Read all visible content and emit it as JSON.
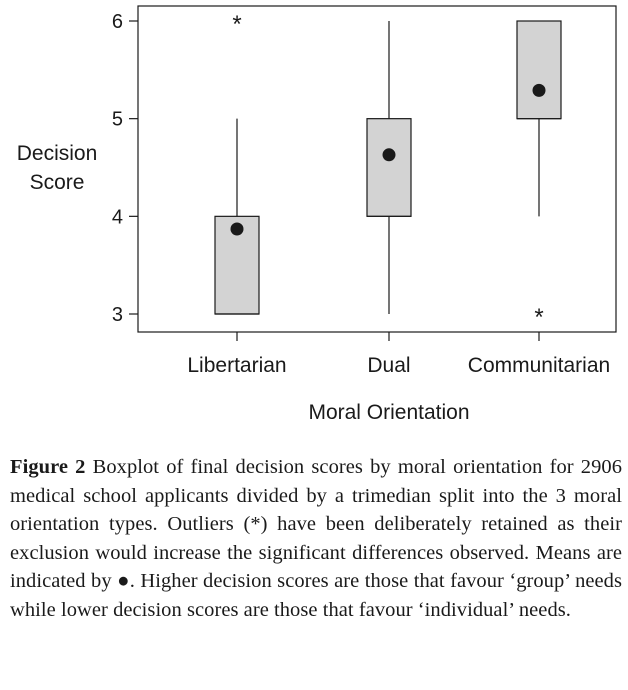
{
  "chart_data": {
    "type": "box",
    "ylabel_lines": [
      "Decision",
      "Score"
    ],
    "xlabel": "Moral Orientation",
    "ylim": [
      2.93,
      6.13
    ],
    "y_ticks": [
      3,
      4,
      5,
      6
    ],
    "grid": false,
    "legend": "none",
    "categories": [
      "Libertarian",
      "Dual",
      "Communitarian"
    ],
    "boxes": [
      {
        "category": "Libertarian",
        "whisker_low": 3,
        "q1": 3,
        "median": 3,
        "q3": 4,
        "whisker_high": 5,
        "mean": 3.87,
        "outliers": [
          6
        ]
      },
      {
        "category": "Dual",
        "whisker_low": 3,
        "q1": 4,
        "median": 4,
        "q3": 5,
        "whisker_high": 6,
        "mean": 4.63,
        "outliers": []
      },
      {
        "category": "Communitarian",
        "whisker_low": 4,
        "q1": 5,
        "median": 5,
        "q3": 6,
        "whisker_high": 6,
        "mean": 5.29,
        "outliers": [
          3
        ]
      }
    ],
    "box_fill": "#d3d3d3",
    "stroke_color": "#1a1a1a",
    "outlier_symbol": "*",
    "mean_symbol": "●"
  },
  "caption": {
    "figure_label": "Figure 2",
    "text_before_symbol": " Boxplot of final decision scores by moral orientation for 2906 medical school applicants divided by a trimedian split into the 3 moral orientation types. Outliers (*) have been deliberately retained as their exclusion would increase the significant differences observed. Means are indicated by ",
    "symbol": "●",
    "text_after_symbol": ". Higher decision scores are those that favour ‘group’ needs while lower decision scores are those that favour ‘individual’ needs."
  }
}
